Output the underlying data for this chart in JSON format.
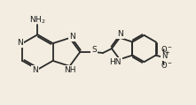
{
  "bg_color": "#f2ede0",
  "bond_color": "#2a2a2a",
  "text_color": "#1a1a1a",
  "bond_width": 1.3,
  "font_size": 6.5,
  "figsize": [
    2.21,
    1.19
  ],
  "dpi": 100,
  "xlim": [
    0,
    22.1
  ],
  "ylim": [
    0,
    11.9
  ]
}
